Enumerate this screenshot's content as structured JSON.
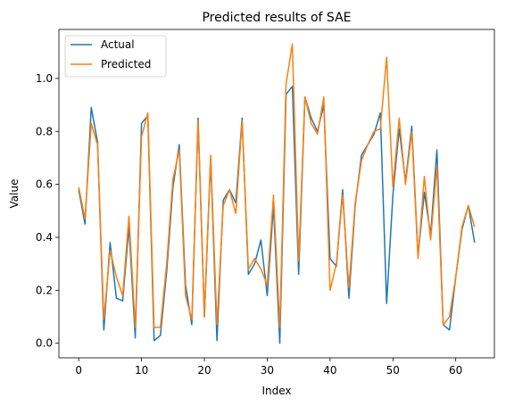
{
  "chart_data": {
    "type": "line",
    "title": "Predicted results of SAE",
    "xlabel": "Index",
    "ylabel": "Value",
    "xlim": [
      -3.15,
      66.15
    ],
    "ylim": [
      -0.055,
      1.185
    ],
    "xticks": [
      0,
      10,
      20,
      30,
      40,
      50,
      60
    ],
    "yticks": [
      0.0,
      0.2,
      0.4,
      0.6,
      0.8,
      1.0
    ],
    "ytick_labels": [
      "0.0",
      "0.2",
      "0.4",
      "0.6",
      "0.8",
      "1.0"
    ],
    "legend_position": "top-left",
    "grid": false,
    "x": [
      0,
      1,
      2,
      3,
      4,
      5,
      6,
      7,
      8,
      9,
      10,
      11,
      12,
      13,
      14,
      15,
      16,
      17,
      18,
      19,
      20,
      21,
      22,
      23,
      24,
      25,
      26,
      27,
      28,
      29,
      30,
      31,
      32,
      33,
      34,
      35,
      36,
      37,
      38,
      39,
      40,
      41,
      42,
      43,
      44,
      45,
      46,
      47,
      48,
      49,
      50,
      51,
      52,
      53,
      54,
      55,
      56,
      57,
      58,
      59,
      60,
      61,
      62,
      63
    ],
    "series": [
      {
        "name": "Actual",
        "color": "#1f77b4",
        "values": [
          0.58,
          0.45,
          0.89,
          0.76,
          0.05,
          0.38,
          0.17,
          0.16,
          0.44,
          0.02,
          0.83,
          0.86,
          0.01,
          0.03,
          0.27,
          0.59,
          0.75,
          0.22,
          0.07,
          0.85,
          0.1,
          0.7,
          0.01,
          0.54,
          0.58,
          0.53,
          0.85,
          0.26,
          0.3,
          0.39,
          0.18,
          0.52,
          0.0,
          0.94,
          0.97,
          0.26,
          0.93,
          0.85,
          0.8,
          0.9,
          0.32,
          0.29,
          0.58,
          0.17,
          0.52,
          0.71,
          0.75,
          0.79,
          0.87,
          0.15,
          0.56,
          0.81,
          0.61,
          0.82,
          0.33,
          0.57,
          0.41,
          0.73,
          0.07,
          0.05,
          0.25,
          0.43,
          0.52,
          0.38
        ]
      },
      {
        "name": "Predicted",
        "color": "#ff7f0e",
        "values": [
          0.59,
          0.47,
          0.83,
          0.75,
          0.09,
          0.35,
          0.25,
          0.18,
          0.48,
          0.06,
          0.78,
          0.87,
          0.06,
          0.06,
          0.3,
          0.62,
          0.73,
          0.18,
          0.09,
          0.84,
          0.1,
          0.71,
          0.07,
          0.52,
          0.58,
          0.49,
          0.84,
          0.28,
          0.32,
          0.28,
          0.22,
          0.56,
          0.06,
          0.98,
          1.13,
          0.31,
          0.93,
          0.83,
          0.79,
          0.93,
          0.2,
          0.3,
          0.56,
          0.21,
          0.53,
          0.69,
          0.75,
          0.8,
          0.81,
          1.08,
          0.59,
          0.85,
          0.6,
          0.8,
          0.32,
          0.63,
          0.39,
          0.67,
          0.07,
          0.1,
          0.25,
          0.44,
          0.52,
          0.44
        ]
      }
    ]
  }
}
